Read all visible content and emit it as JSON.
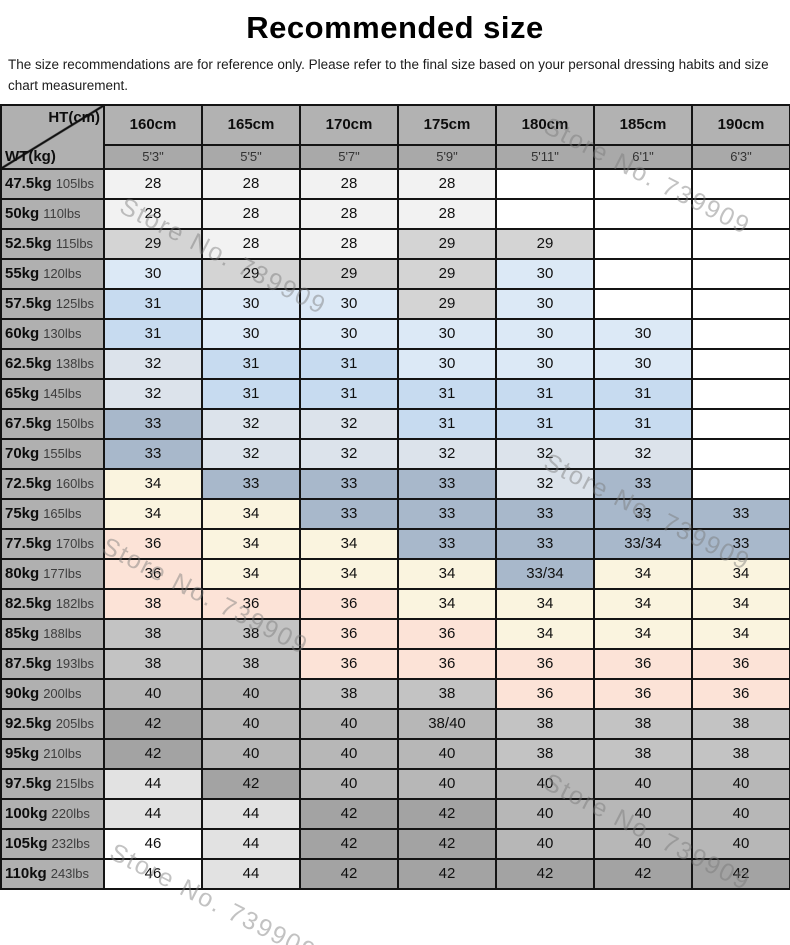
{
  "title": "Recommended size",
  "disclaimer": "The size recommendations are for reference only. Please refer to the final size based on your personal dressing habits and size chart measurement.",
  "watermark": {
    "text": "Store No. 739909"
  },
  "chart_data": {
    "type": "table",
    "title": "Recommended size",
    "corner_top_right": "HT(cm)",
    "corner_bottom_left": "WT(kg)",
    "columns": [
      {
        "cm": "160cm",
        "ft": "5'3\""
      },
      {
        "cm": "165cm",
        "ft": "5'5\""
      },
      {
        "cm": "170cm",
        "ft": "5'7\""
      },
      {
        "cm": "175cm",
        "ft": "5'9\""
      },
      {
        "cm": "180cm",
        "ft": "5'11\""
      },
      {
        "cm": "185cm",
        "ft": "6'1\""
      },
      {
        "cm": "190cm",
        "ft": "6'3\""
      }
    ],
    "palette": {
      "wh": "#ffffff",
      "lt": "#f2f2f2",
      "gy29": "#d4d4d4",
      "bl30": "#dce9f6",
      "bl31": "#c7dbf0",
      "bl32": "#dce3eb",
      "st33": "#a8b8cb",
      "cr34": "#faf4df",
      "pk36": "#fce3d7",
      "gy38": "#c3c3c3",
      "gy40": "#b7b7b7",
      "gy42": "#a3a3a3",
      "gy44": "#e2e2e2"
    },
    "rows": [
      {
        "kg": "47.5kg",
        "lbs": "105lbs",
        "cells": [
          {
            "v": "28",
            "c": "lt"
          },
          {
            "v": "28",
            "c": "lt"
          },
          {
            "v": "28",
            "c": "lt"
          },
          {
            "v": "28",
            "c": "lt"
          },
          {
            "v": "",
            "c": "wh"
          },
          {
            "v": "",
            "c": "wh"
          },
          {
            "v": "",
            "c": "wh"
          }
        ]
      },
      {
        "kg": "50kg",
        "lbs": "110lbs",
        "cells": [
          {
            "v": "28",
            "c": "lt"
          },
          {
            "v": "28",
            "c": "lt"
          },
          {
            "v": "28",
            "c": "lt"
          },
          {
            "v": "28",
            "c": "lt"
          },
          {
            "v": "",
            "c": "wh"
          },
          {
            "v": "",
            "c": "wh"
          },
          {
            "v": "",
            "c": "wh"
          }
        ]
      },
      {
        "kg": "52.5kg",
        "lbs": "115lbs",
        "cells": [
          {
            "v": "29",
            "c": "gy29"
          },
          {
            "v": "28",
            "c": "lt"
          },
          {
            "v": "28",
            "c": "lt"
          },
          {
            "v": "29",
            "c": "gy29"
          },
          {
            "v": "29",
            "c": "gy29"
          },
          {
            "v": "",
            "c": "wh"
          },
          {
            "v": "",
            "c": "wh"
          }
        ]
      },
      {
        "kg": "55kg",
        "lbs": "120lbs",
        "cells": [
          {
            "v": "30",
            "c": "bl30"
          },
          {
            "v": "29",
            "c": "gy29"
          },
          {
            "v": "29",
            "c": "gy29"
          },
          {
            "v": "29",
            "c": "gy29"
          },
          {
            "v": "30",
            "c": "bl30"
          },
          {
            "v": "",
            "c": "wh"
          },
          {
            "v": "",
            "c": "wh"
          }
        ]
      },
      {
        "kg": "57.5kg",
        "lbs": "125lbs",
        "cells": [
          {
            "v": "31",
            "c": "bl31"
          },
          {
            "v": "30",
            "c": "bl30"
          },
          {
            "v": "30",
            "c": "bl30"
          },
          {
            "v": "29",
            "c": "gy29"
          },
          {
            "v": "30",
            "c": "bl30"
          },
          {
            "v": "",
            "c": "wh"
          },
          {
            "v": "",
            "c": "wh"
          }
        ]
      },
      {
        "kg": "60kg",
        "lbs": "130lbs",
        "cells": [
          {
            "v": "31",
            "c": "bl31"
          },
          {
            "v": "30",
            "c": "bl30"
          },
          {
            "v": "30",
            "c": "bl30"
          },
          {
            "v": "30",
            "c": "bl30"
          },
          {
            "v": "30",
            "c": "bl30"
          },
          {
            "v": "30",
            "c": "bl30"
          },
          {
            "v": "",
            "c": "wh"
          }
        ]
      },
      {
        "kg": "62.5kg",
        "lbs": "138lbs",
        "cells": [
          {
            "v": "32",
            "c": "bl32"
          },
          {
            "v": "31",
            "c": "bl31"
          },
          {
            "v": "31",
            "c": "bl31"
          },
          {
            "v": "30",
            "c": "bl30"
          },
          {
            "v": "30",
            "c": "bl30"
          },
          {
            "v": "30",
            "c": "bl30"
          },
          {
            "v": "",
            "c": "wh"
          }
        ]
      },
      {
        "kg": "65kg",
        "lbs": "145lbs",
        "cells": [
          {
            "v": "32",
            "c": "bl32"
          },
          {
            "v": "31",
            "c": "bl31"
          },
          {
            "v": "31",
            "c": "bl31"
          },
          {
            "v": "31",
            "c": "bl31"
          },
          {
            "v": "31",
            "c": "bl31"
          },
          {
            "v": "31",
            "c": "bl31"
          },
          {
            "v": "",
            "c": "wh"
          }
        ]
      },
      {
        "kg": "67.5kg",
        "lbs": "150lbs",
        "cells": [
          {
            "v": "33",
            "c": "st33"
          },
          {
            "v": "32",
            "c": "bl32"
          },
          {
            "v": "32",
            "c": "bl32"
          },
          {
            "v": "31",
            "c": "bl31"
          },
          {
            "v": "31",
            "c": "bl31"
          },
          {
            "v": "31",
            "c": "bl31"
          },
          {
            "v": "",
            "c": "wh"
          }
        ]
      },
      {
        "kg": "70kg",
        "lbs": "155lbs",
        "cells": [
          {
            "v": "33",
            "c": "st33"
          },
          {
            "v": "32",
            "c": "bl32"
          },
          {
            "v": "32",
            "c": "bl32"
          },
          {
            "v": "32",
            "c": "bl32"
          },
          {
            "v": "32",
            "c": "bl32"
          },
          {
            "v": "32",
            "c": "bl32"
          },
          {
            "v": "",
            "c": "wh"
          }
        ]
      },
      {
        "kg": "72.5kg",
        "lbs": "160lbs",
        "cells": [
          {
            "v": "34",
            "c": "cr34"
          },
          {
            "v": "33",
            "c": "st33"
          },
          {
            "v": "33",
            "c": "st33"
          },
          {
            "v": "33",
            "c": "st33"
          },
          {
            "v": "32",
            "c": "bl32"
          },
          {
            "v": "33",
            "c": "st33"
          },
          {
            "v": "",
            "c": "wh"
          }
        ]
      },
      {
        "kg": "75kg",
        "lbs": "165lbs",
        "cells": [
          {
            "v": "34",
            "c": "cr34"
          },
          {
            "v": "34",
            "c": "cr34"
          },
          {
            "v": "33",
            "c": "st33"
          },
          {
            "v": "33",
            "c": "st33"
          },
          {
            "v": "33",
            "c": "st33"
          },
          {
            "v": "33",
            "c": "st33"
          },
          {
            "v": "33",
            "c": "st33"
          }
        ]
      },
      {
        "kg": "77.5kg",
        "lbs": "170lbs",
        "cells": [
          {
            "v": "36",
            "c": "pk36"
          },
          {
            "v": "34",
            "c": "cr34"
          },
          {
            "v": "34",
            "c": "cr34"
          },
          {
            "v": "33",
            "c": "st33"
          },
          {
            "v": "33",
            "c": "st33"
          },
          {
            "v": "33/34",
            "c": "st33"
          },
          {
            "v": "33",
            "c": "st33"
          }
        ]
      },
      {
        "kg": "80kg",
        "lbs": "177lbs",
        "cells": [
          {
            "v": "36",
            "c": "pk36"
          },
          {
            "v": "34",
            "c": "cr34"
          },
          {
            "v": "34",
            "c": "cr34"
          },
          {
            "v": "34",
            "c": "cr34"
          },
          {
            "v": "33/34",
            "c": "st33"
          },
          {
            "v": "34",
            "c": "cr34"
          },
          {
            "v": "34",
            "c": "cr34"
          }
        ]
      },
      {
        "kg": "82.5kg",
        "lbs": "182lbs",
        "cells": [
          {
            "v": "38",
            "c": "pk36"
          },
          {
            "v": "36",
            "c": "pk36"
          },
          {
            "v": "36",
            "c": "pk36"
          },
          {
            "v": "34",
            "c": "cr34"
          },
          {
            "v": "34",
            "c": "cr34"
          },
          {
            "v": "34",
            "c": "cr34"
          },
          {
            "v": "34",
            "c": "cr34"
          }
        ]
      },
      {
        "kg": "85kg",
        "lbs": "188lbs",
        "cells": [
          {
            "v": "38",
            "c": "gy38"
          },
          {
            "v": "38",
            "c": "gy38"
          },
          {
            "v": "36",
            "c": "pk36"
          },
          {
            "v": "36",
            "c": "pk36"
          },
          {
            "v": "34",
            "c": "cr34"
          },
          {
            "v": "34",
            "c": "cr34"
          },
          {
            "v": "34",
            "c": "cr34"
          }
        ]
      },
      {
        "kg": "87.5kg",
        "lbs": "193lbs",
        "cells": [
          {
            "v": "38",
            "c": "gy38"
          },
          {
            "v": "38",
            "c": "gy38"
          },
          {
            "v": "36",
            "c": "pk36"
          },
          {
            "v": "36",
            "c": "pk36"
          },
          {
            "v": "36",
            "c": "pk36"
          },
          {
            "v": "36",
            "c": "pk36"
          },
          {
            "v": "36",
            "c": "pk36"
          }
        ]
      },
      {
        "kg": "90kg",
        "lbs": "200lbs",
        "cells": [
          {
            "v": "40",
            "c": "gy40"
          },
          {
            "v": "40",
            "c": "gy40"
          },
          {
            "v": "38",
            "c": "gy38"
          },
          {
            "v": "38",
            "c": "gy38"
          },
          {
            "v": "36",
            "c": "pk36"
          },
          {
            "v": "36",
            "c": "pk36"
          },
          {
            "v": "36",
            "c": "pk36"
          }
        ]
      },
      {
        "kg": "92.5kg",
        "lbs": "205lbs",
        "cells": [
          {
            "v": "42",
            "c": "gy42"
          },
          {
            "v": "40",
            "c": "gy40"
          },
          {
            "v": "40",
            "c": "gy40"
          },
          {
            "v": "38/40",
            "c": "gy40"
          },
          {
            "v": "38",
            "c": "gy38"
          },
          {
            "v": "38",
            "c": "gy38"
          },
          {
            "v": "38",
            "c": "gy38"
          }
        ]
      },
      {
        "kg": "95kg",
        "lbs": "210lbs",
        "cells": [
          {
            "v": "42",
            "c": "gy42"
          },
          {
            "v": "40",
            "c": "gy40"
          },
          {
            "v": "40",
            "c": "gy40"
          },
          {
            "v": "40",
            "c": "gy40"
          },
          {
            "v": "38",
            "c": "gy38"
          },
          {
            "v": "38",
            "c": "gy38"
          },
          {
            "v": "38",
            "c": "gy38"
          }
        ]
      },
      {
        "kg": "97.5kg",
        "lbs": "215lbs",
        "cells": [
          {
            "v": "44",
            "c": "gy44"
          },
          {
            "v": "42",
            "c": "gy42"
          },
          {
            "v": "40",
            "c": "gy40"
          },
          {
            "v": "40",
            "c": "gy40"
          },
          {
            "v": "40",
            "c": "gy40"
          },
          {
            "v": "40",
            "c": "gy40"
          },
          {
            "v": "40",
            "c": "gy40"
          }
        ]
      },
      {
        "kg": "100kg",
        "lbs": "220lbs",
        "cells": [
          {
            "v": "44",
            "c": "gy44"
          },
          {
            "v": "44",
            "c": "gy44"
          },
          {
            "v": "42",
            "c": "gy42"
          },
          {
            "v": "42",
            "c": "gy42"
          },
          {
            "v": "40",
            "c": "gy40"
          },
          {
            "v": "40",
            "c": "gy40"
          },
          {
            "v": "40",
            "c": "gy40"
          }
        ]
      },
      {
        "kg": "105kg",
        "lbs": "232lbs",
        "cells": [
          {
            "v": "46",
            "c": "wh"
          },
          {
            "v": "44",
            "c": "gy44"
          },
          {
            "v": "42",
            "c": "gy42"
          },
          {
            "v": "42",
            "c": "gy42"
          },
          {
            "v": "40",
            "c": "gy40"
          },
          {
            "v": "40",
            "c": "gy40"
          },
          {
            "v": "40",
            "c": "gy40"
          }
        ]
      },
      {
        "kg": "110kg",
        "lbs": "243lbs",
        "cells": [
          {
            "v": "46",
            "c": "wh"
          },
          {
            "v": "44",
            "c": "gy44"
          },
          {
            "v": "42",
            "c": "gy42"
          },
          {
            "v": "42",
            "c": "gy42"
          },
          {
            "v": "42",
            "c": "gy42"
          },
          {
            "v": "42",
            "c": "gy42"
          },
          {
            "v": "42",
            "c": "gy42"
          }
        ]
      }
    ]
  }
}
